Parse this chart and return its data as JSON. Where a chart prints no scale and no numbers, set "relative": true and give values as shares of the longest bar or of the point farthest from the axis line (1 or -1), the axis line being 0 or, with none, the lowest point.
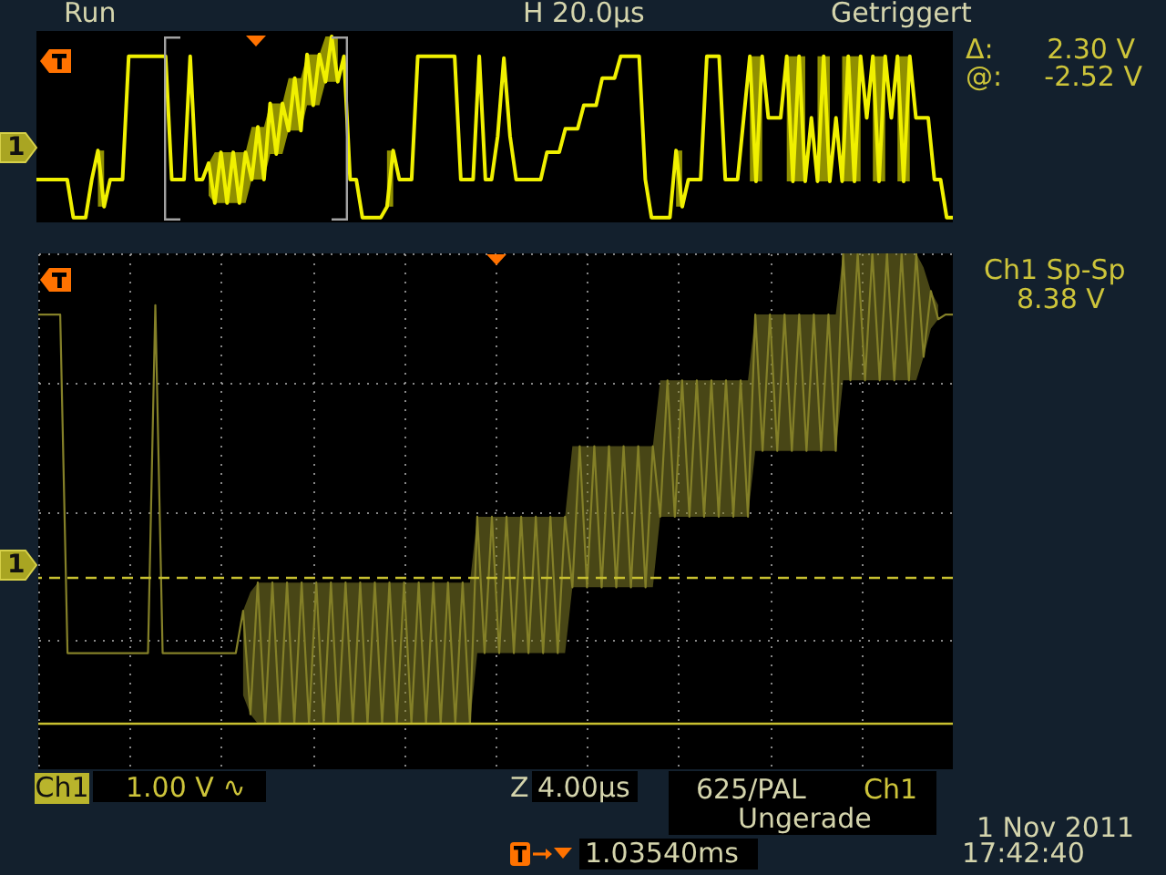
{
  "chart_data": [
    {
      "type": "line",
      "categories": [
        null,
        null,
        null,
        null,
        null,
        null,
        null,
        null,
        null,
        null,
        null,
        null,
        null,
        null,
        null,
        null,
        null,
        null,
        null,
        null,
        null,
        null,
        null,
        null,
        null,
        null,
        null,
        null,
        null,
        null,
        null,
        null,
        null,
        null,
        null,
        null,
        null,
        null,
        null,
        null,
        null,
        null,
        null,
        null,
        null,
        null,
        null,
        null,
        null,
        null,
        null,
        null,
        null,
        null,
        null,
        null,
        null,
        null,
        null,
        null,
        null,
        null,
        null,
        null,
        null,
        null,
        null,
        null,
        null,
        null,
        null,
        null,
        null,
        null,
        null,
        null,
        null,
        null,
        null,
        null,
        null,
        null,
        null,
        null,
        null,
        null,
        null,
        null,
        null,
        null,
        null,
        null,
        null,
        null,
        null,
        null,
        null,
        null,
        null,
        null,
        null,
        null,
        null,
        null,
        null,
        null,
        null,
        null,
        null,
        null,
        null,
        null,
        null,
        null,
        null,
        null,
        null,
        null,
        null,
        null,
        null,
        null,
        null,
        null,
        null,
        null,
        null,
        null,
        null,
        null,
        null,
        null,
        null,
        null,
        null,
        null,
        null,
        null,
        null,
        null,
        null,
        null,
        null,
        null,
        null,
        null,
        null,
        null,
        null,
        null
      ],
      "series": [
        {
          "color": "#f0f000",
          "values": [
            0.21,
            0.21,
            0.21,
            0.21,
            0.21,
            0.21,
            0,
            0,
            0,
            0.21,
            0.37,
            0.06,
            0.21,
            0.21,
            0.21,
            0.89,
            0.89,
            0.89,
            0.89,
            0.89,
            0.89,
            0.89,
            0.21,
            0.21,
            0.21,
            0.89,
            0.21,
            0.21,
            0.3,
            0.08,
            0.36,
            0.08,
            0.36,
            0.08,
            0.36,
            0.21,
            0.5,
            0.21,
            0.63,
            0.35,
            0.63,
            0.48,
            0.77,
            0.48,
            0.9,
            0.62,
            0.9,
            0.75,
            1,
            0.75,
            0.89,
            0.21,
            0.21,
            0,
            0,
            0,
            0,
            0.06,
            0.37,
            0.21,
            0.21,
            0.21,
            0.89,
            0.89,
            0.89,
            0.89,
            0.89,
            0.89,
            0.89,
            0.21,
            0.21,
            0.21,
            0.89,
            0.21,
            0.21,
            0.45,
            0.88,
            0.45,
            0.21,
            0.21,
            0.21,
            0.21,
            0.21,
            0.36,
            0.36,
            0.36,
            0.49,
            0.49,
            0.49,
            0.62,
            0.62,
            0.62,
            0.77,
            0.77,
            0.77,
            0.89,
            0.89,
            0.89,
            0.89,
            0.21,
            0,
            0,
            0,
            0,
            0.37,
            0.06,
            0.21,
            0.21,
            0.21,
            0.89,
            0.89,
            0.89,
            0.21,
            0.21,
            0.21,
            0.55,
            0.89,
            0.2,
            0.89,
            0.55,
            0.55,
            0.55,
            0.89,
            0.2,
            0.89,
            0.2,
            0.55,
            0.2,
            0.89,
            0.2,
            0.55,
            0.2,
            0.89,
            0.2,
            0.89,
            0.55,
            0.89,
            0.2,
            0.89,
            0.55,
            0.89,
            0.2,
            0.89,
            0.55,
            0.55,
            0.55,
            0.21,
            0.21,
            0,
            0
          ],
          "lower": [
            null,
            null,
            null,
            null,
            null,
            null,
            null,
            null,
            null,
            null,
            0.06,
            0.06,
            null,
            null,
            null,
            null,
            null,
            null,
            null,
            null,
            null,
            null,
            null,
            null,
            null,
            null,
            null,
            null,
            0.12,
            0.08,
            0.08,
            0.08,
            0.08,
            0.08,
            0.08,
            0.21,
            0.21,
            0.21,
            0.35,
            0.35,
            0.35,
            0.48,
            0.48,
            0.48,
            0.62,
            0.62,
            0.62,
            0.75,
            0.75,
            0.75,
            null,
            null,
            null,
            null,
            null,
            null,
            null,
            0.06,
            0.06,
            null,
            null,
            null,
            null,
            null,
            null,
            null,
            null,
            null,
            null,
            null,
            null,
            null,
            null,
            null,
            null,
            null,
            null,
            null,
            null,
            null,
            null,
            null,
            null,
            null,
            null,
            null,
            null,
            null,
            null,
            null,
            null,
            null,
            null,
            null,
            null,
            null,
            null,
            null,
            null,
            null,
            null,
            null,
            null,
            null,
            0.06,
            0.06,
            null,
            null,
            null,
            null,
            null,
            null,
            null,
            null,
            null,
            null,
            0.2,
            0.2,
            0.2,
            null,
            null,
            null,
            0.2,
            0.2,
            0.2,
            0.2,
            null,
            0.2,
            0.2,
            0.2,
            null,
            0.2,
            0.2,
            0.2,
            0.2,
            null,
            0.2,
            0.2,
            0.2,
            null,
            0.2,
            0.2,
            0.2,
            null,
            null,
            null,
            null,
            null,
            null,
            null
          ],
          "upper": [
            null,
            null,
            null,
            null,
            null,
            null,
            null,
            null,
            null,
            null,
            0.37,
            0.37,
            null,
            null,
            null,
            null,
            null,
            null,
            null,
            null,
            null,
            null,
            null,
            null,
            null,
            null,
            null,
            null,
            0.3,
            0.36,
            0.36,
            0.36,
            0.36,
            0.36,
            0.36,
            0.5,
            0.5,
            0.5,
            0.63,
            0.63,
            0.63,
            0.77,
            0.77,
            0.77,
            0.9,
            0.9,
            0.9,
            1,
            1,
            1,
            null,
            null,
            null,
            null,
            null,
            null,
            null,
            0.37,
            0.37,
            null,
            null,
            null,
            null,
            null,
            null,
            null,
            null,
            null,
            null,
            null,
            null,
            null,
            null,
            null,
            null,
            null,
            null,
            null,
            null,
            null,
            null,
            null,
            null,
            null,
            null,
            null,
            null,
            null,
            null,
            null,
            null,
            null,
            null,
            null,
            null,
            null,
            null,
            null,
            null,
            null,
            null,
            null,
            null,
            null,
            0.37,
            0.37,
            null,
            null,
            null,
            null,
            null,
            null,
            null,
            null,
            null,
            null,
            0.89,
            0.89,
            0.89,
            null,
            null,
            null,
            0.89,
            0.89,
            0.89,
            0.89,
            null,
            0.89,
            0.89,
            0.89,
            null,
            0.89,
            0.89,
            0.89,
            0.89,
            null,
            0.89,
            0.89,
            0.89,
            null,
            0.89,
            0.89,
            0.89,
            null,
            null,
            null,
            null,
            null,
            null,
            null
          ]
        }
      ],
      "relative": true,
      "annotations": [
        "Run",
        "H 20.0µs",
        "Getriggert",
        "1"
      ]
    },
    {
      "type": "line",
      "categories": [
        null,
        null,
        null,
        null,
        null,
        null,
        null,
        null,
        null,
        null,
        null,
        null,
        null,
        null,
        null,
        null,
        null,
        null,
        null,
        null,
        null,
        null,
        null,
        null,
        null,
        null,
        null,
        null,
        null,
        null,
        null,
        null,
        null,
        null,
        null,
        null,
        null,
        null,
        null,
        null,
        null,
        null,
        null,
        null,
        null,
        null,
        null,
        null,
        null,
        null,
        null,
        null,
        null,
        null,
        null,
        null,
        null,
        null,
        null,
        null,
        null,
        null,
        null,
        null,
        null,
        null,
        null,
        null,
        null,
        null,
        null,
        null,
        null,
        null,
        null,
        null,
        null,
        null,
        null,
        null,
        null,
        null,
        null,
        null,
        null,
        null,
        null,
        null,
        null,
        null,
        null,
        null,
        null,
        null,
        null,
        null,
        null,
        null,
        null,
        null,
        null,
        null,
        null,
        null,
        null,
        null,
        null,
        null,
        null,
        null,
        null,
        null,
        null,
        null,
        null,
        null,
        null,
        null,
        null,
        null,
        null,
        null,
        null,
        null,
        null,
        null
      ],
      "series": [
        {
          "color": "#848028",
          "values": [
            0.87,
            0.87,
            0.87,
            0.87,
            0.15,
            0.15,
            0.15,
            0.15,
            0.15,
            0.15,
            0.15,
            0.15,
            0.15,
            0.15,
            0.15,
            0.15,
            0.89,
            0.15,
            0.15,
            0.15,
            0.15,
            0.15,
            0.15,
            0.15,
            0.15,
            0.15,
            0.15,
            0.15,
            0.24,
            0.02,
            0.3,
            0,
            0.3,
            0,
            0.3,
            0,
            0.3,
            0,
            0.3,
            0,
            0.3,
            0,
            0.3,
            0,
            0.3,
            0,
            0.3,
            0,
            0.3,
            0,
            0.3,
            0,
            0.3,
            0,
            0.3,
            0,
            0.3,
            0,
            0.3,
            0,
            0.44,
            0.15,
            0.44,
            0.15,
            0.44,
            0.15,
            0.44,
            0.15,
            0.44,
            0.15,
            0.44,
            0.15,
            0.44,
            0.29,
            0.59,
            0.29,
            0.59,
            0.29,
            0.59,
            0.29,
            0.59,
            0.29,
            0.59,
            0.29,
            0.59,
            0.44,
            0.73,
            0.44,
            0.73,
            0.44,
            0.73,
            0.44,
            0.73,
            0.44,
            0.73,
            0.44,
            0.73,
            0.44,
            0.87,
            0.58,
            0.87,
            0.58,
            0.87,
            0.58,
            0.87,
            0.58,
            0.87,
            0.58,
            0.87,
            0.58,
            1,
            0.73,
            1,
            0.73,
            1,
            0.73,
            1,
            0.73,
            1,
            0.73,
            1,
            0.78,
            0.92,
            0.86,
            0.87,
            0.87
          ],
          "lower": [
            null,
            null,
            null,
            null,
            null,
            null,
            null,
            null,
            null,
            null,
            null,
            null,
            null,
            null,
            null,
            null,
            null,
            null,
            null,
            null,
            null,
            null,
            null,
            null,
            null,
            null,
            null,
            null,
            0.06,
            0.02,
            0,
            0,
            0,
            0,
            0,
            0,
            0,
            0,
            0,
            0,
            0,
            0,
            0,
            0,
            0,
            0,
            0,
            0,
            0,
            0,
            0,
            0,
            0,
            0,
            0,
            0,
            0,
            0,
            0,
            0,
            0.15,
            0.15,
            0.15,
            0.15,
            0.15,
            0.15,
            0.15,
            0.15,
            0.15,
            0.15,
            0.15,
            0.15,
            0.15,
            0.29,
            0.29,
            0.29,
            0.29,
            0.29,
            0.29,
            0.29,
            0.29,
            0.29,
            0.29,
            0.29,
            0.29,
            0.44,
            0.44,
            0.44,
            0.44,
            0.44,
            0.44,
            0.44,
            0.44,
            0.44,
            0.44,
            0.44,
            0.44,
            0.44,
            0.58,
            0.58,
            0.58,
            0.58,
            0.58,
            0.58,
            0.58,
            0.58,
            0.58,
            0.58,
            0.58,
            0.58,
            0.73,
            0.73,
            0.73,
            0.73,
            0.73,
            0.73,
            0.73,
            0.73,
            0.73,
            0.73,
            0.73,
            0.78,
            0.84,
            0.86,
            null,
            null
          ],
          "upper": [
            null,
            null,
            null,
            null,
            null,
            null,
            null,
            null,
            null,
            null,
            null,
            null,
            null,
            null,
            null,
            null,
            null,
            null,
            null,
            null,
            null,
            null,
            null,
            null,
            null,
            null,
            null,
            null,
            0.24,
            0.28,
            0.3,
            0.3,
            0.3,
            0.3,
            0.3,
            0.3,
            0.3,
            0.3,
            0.3,
            0.3,
            0.3,
            0.3,
            0.3,
            0.3,
            0.3,
            0.3,
            0.3,
            0.3,
            0.3,
            0.3,
            0.3,
            0.3,
            0.3,
            0.3,
            0.3,
            0.3,
            0.3,
            0.3,
            0.3,
            0.3,
            0.44,
            0.44,
            0.44,
            0.44,
            0.44,
            0.44,
            0.44,
            0.44,
            0.44,
            0.44,
            0.44,
            0.44,
            0.44,
            0.59,
            0.59,
            0.59,
            0.59,
            0.59,
            0.59,
            0.59,
            0.59,
            0.59,
            0.59,
            0.59,
            0.59,
            0.73,
            0.73,
            0.73,
            0.73,
            0.73,
            0.73,
            0.73,
            0.73,
            0.73,
            0.73,
            0.73,
            0.73,
            0.73,
            0.87,
            0.87,
            0.87,
            0.87,
            0.87,
            0.87,
            0.87,
            0.87,
            0.87,
            0.87,
            0.87,
            0.87,
            1,
            1,
            1,
            1,
            1,
            1,
            1,
            1,
            1,
            1,
            1,
            0.97,
            0.92,
            0.89,
            null,
            null
          ]
        }
      ],
      "relative": true,
      "grid": true,
      "ref_lines": [
        {
          "axis": "y",
          "value": 0.31,
          "line_style": "dashed",
          "color": "#c8c030"
        },
        {
          "axis": "y",
          "value": 0,
          "color": "#c8c030"
        }
      ],
      "annotations": [
        "Δ:",
        "2.30 V",
        "@:",
        "-2.52 V",
        "Ch1 Sp-Sp",
        "8.38 V",
        "Ch1",
        "1.00 V ∿",
        "Z",
        "4.00µs",
        "625/PAL",
        "Ch1",
        "Ungerade",
        "1.03540ms",
        "1 Nov 2011",
        "17:42:40",
        "1"
      ]
    }
  ]
}
